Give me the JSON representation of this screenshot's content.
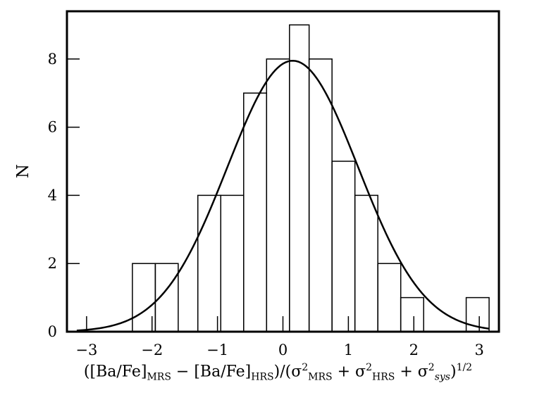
{
  "chart_data": {
    "type": "bar",
    "histogram": true,
    "title": "",
    "ylabel": "N",
    "xlabel_parts": {
      "open": "([Ba/Fe]",
      "sub_mrs": "MRS",
      "minus": " − [Ba/Fe]",
      "sub_hrs": "HRS",
      "mid": ")/(σ",
      "sq1": "2",
      "sub_mrs2": "MRS",
      "plus1": " + σ",
      "sq2": "2",
      "sub_hrs2": "HRS",
      "plus2": " + σ",
      "sq3": "2",
      "sub_sys": "sys",
      "close": ")",
      "power": "1/2"
    },
    "xlim": [
      -3.3,
      3.3
    ],
    "ylim": [
      0,
      9.4
    ],
    "xticks": [
      -3,
      -2,
      -1,
      0,
      1,
      2,
      3
    ],
    "xtick_labels": [
      "−3",
      "−2",
      "−1",
      "0",
      "1",
      "2",
      "3"
    ],
    "yticks": [
      0,
      2,
      4,
      6,
      8
    ],
    "ytick_labels": [
      "0",
      "2",
      "4",
      "6",
      "8"
    ],
    "bin_edges": [
      -2.3,
      -1.95,
      -1.6,
      -1.3,
      -0.95,
      -0.6,
      -0.25,
      0.1,
      0.4,
      0.75,
      1.1,
      1.45,
      1.8,
      2.15,
      2.45,
      2.8,
      3.15
    ],
    "counts": [
      2,
      2,
      0,
      4,
      4,
      7,
      8,
      9,
      8,
      5,
      4,
      2,
      1,
      0,
      0,
      1
    ],
    "gaussian": {
      "amplitude": 7.95,
      "mean": 0.15,
      "sigma": 1.0,
      "x_range": [
        -3.15,
        3.15
      ]
    },
    "grid": false,
    "legend": "none"
  }
}
